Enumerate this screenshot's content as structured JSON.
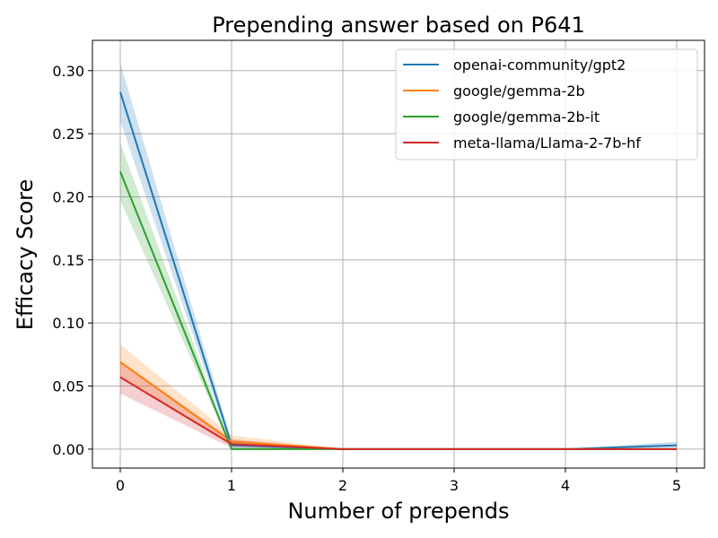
{
  "chart_data": {
    "type": "line",
    "title": "Prepending answer based on P641",
    "xlabel": "Number of prepends",
    "ylabel": "Efficacy Score",
    "x": [
      0,
      1,
      2,
      3,
      4,
      5
    ],
    "xlim": [
      -0.25,
      5.25
    ],
    "ylim": [
      -0.015,
      0.324
    ],
    "xticks": [
      "0",
      "1",
      "2",
      "3",
      "4",
      "5"
    ],
    "yticks": [
      "0.00",
      "0.05",
      "0.10",
      "0.15",
      "0.20",
      "0.25",
      "0.30"
    ],
    "grid": true,
    "legend_position": "top-right",
    "series": [
      {
        "name": "openai-community/gpt2",
        "color": "#1f77b4",
        "values": [
          0.283,
          0.003,
          0.0,
          0.0,
          0.0,
          0.003
        ],
        "lower": [
          0.26,
          0.0,
          0.0,
          0.0,
          0.0,
          0.001
        ],
        "upper": [
          0.306,
          0.007,
          0.0,
          0.0,
          0.0,
          0.006
        ]
      },
      {
        "name": "google/gemma-2b",
        "color": "#ff7f0e",
        "values": [
          0.069,
          0.006,
          0.0,
          0.0,
          0.0,
          0.0
        ],
        "lower": [
          0.056,
          0.003,
          0.0,
          0.0,
          0.0,
          0.0
        ],
        "upper": [
          0.083,
          0.011,
          0.0,
          0.0,
          0.0,
          0.0
        ]
      },
      {
        "name": "google/gemma-2b-it",
        "color": "#2ca02c",
        "values": [
          0.22,
          0.0,
          0.0,
          0.0,
          0.0,
          0.0
        ],
        "lower": [
          0.197,
          0.0,
          0.0,
          0.0,
          0.0,
          0.0
        ],
        "upper": [
          0.243,
          0.001,
          0.0,
          0.0,
          0.0,
          0.0
        ]
      },
      {
        "name": "meta-llama/Llama-2-7b-hf",
        "color": "#d62728",
        "values": [
          0.057,
          0.004,
          0.0,
          0.0,
          0.0,
          0.0
        ],
        "lower": [
          0.044,
          0.001,
          0.0,
          0.0,
          0.0,
          0.0
        ],
        "upper": [
          0.07,
          0.008,
          0.0,
          0.0,
          0.0,
          0.0
        ]
      }
    ]
  }
}
